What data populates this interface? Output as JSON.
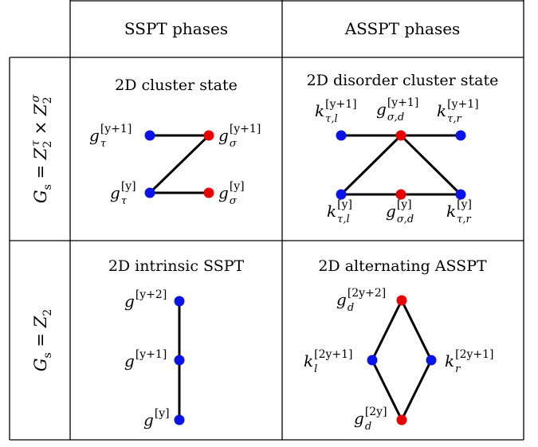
{
  "columns": {
    "sspt": "SSPT phases",
    "assp": "ASSPT phases"
  },
  "rows": {
    "row1_label": "G_s = Z_2^τ × Z_2^σ",
    "row2_label": "G_s = Z_2"
  },
  "panels": {
    "p1_title": "2D cluster state",
    "p2_title": "2D disorder cluster state",
    "p3_title": "2D intrinsic SSPT",
    "p4_title": "2D alternating ASSPT"
  },
  "colors": {
    "blue": "#0a14e6",
    "red": "#e60000",
    "line": "#000000"
  },
  "nodes": {
    "p1_gtau_top": "g_τ^[y+1]",
    "p1_gsig_top": "g_σ^[y+1]",
    "p1_gtau_bot": "g_τ^[y]",
    "p1_gsig_bot": "g_σ^[y]",
    "p2_k_l_top": "k_τ,l^[y+1]",
    "p2_g_d_top": "g_σ,d^[y+1]",
    "p2_k_r_top": "k_τ,r^[y+1]",
    "p2_k_l_bot": "k_τ,l^[y]",
    "p2_g_d_bot": "g_σ,d^[y]",
    "p2_k_r_bot": "k_τ,r^[y]",
    "p3_top": "g^[y+2]",
    "p3_mid": "g^[y+1]",
    "p3_bot": "g^[y]",
    "p4_top": "g_d^[2y+2]",
    "p4_left": "k_l^[2y+1]",
    "p4_right": "k_r^[2y+1]",
    "p4_bot": "g_d^[2y]"
  }
}
